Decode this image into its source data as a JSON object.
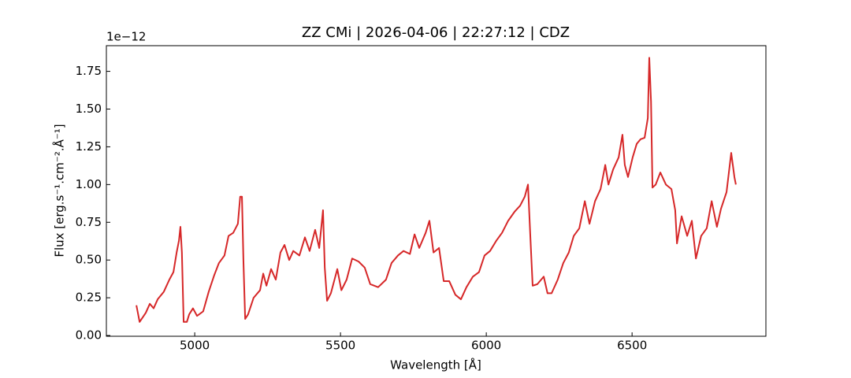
{
  "chart_data": {
    "type": "line",
    "title": "ZZ CMi | 2026-04-06 | 22:27:12 | CDZ",
    "xlabel": "Wavelength [Å]",
    "ylabel": "Flux [erg.s⁻¹.cm⁻².Å⁻¹]",
    "y_offset_text": "1e−12",
    "x": [
      4800,
      4811,
      4832,
      4846,
      4859,
      4873,
      4894,
      4913,
      4927,
      4938,
      4946,
      4951,
      4956,
      4962,
      4973,
      4981,
      4994,
      5008,
      5029,
      5048,
      5067,
      5083,
      5102,
      5116,
      5132,
      5148,
      5156,
      5162,
      5167,
      5173,
      5183,
      5202,
      5224,
      5235,
      5246,
      5262,
      5278,
      5294,
      5308,
      5324,
      5338,
      5359,
      5378,
      5394,
      5413,
      5427,
      5440,
      5446,
      5454,
      5467,
      5489,
      5503,
      5521,
      5540,
      5562,
      5583,
      5602,
      5629,
      5656,
      5675,
      5697,
      5716,
      5738,
      5754,
      5770,
      5792,
      5805,
      5819,
      5838,
      5854,
      5873,
      5894,
      5913,
      5932,
      5954,
      5975,
      5994,
      6013,
      6035,
      6054,
      6075,
      6097,
      6116,
      6132,
      6143,
      6151,
      6159,
      6175,
      6197,
      6210,
      6224,
      6245,
      6264,
      6283,
      6300,
      6319,
      6338,
      6354,
      6373,
      6392,
      6408,
      6419,
      6435,
      6454,
      6467,
      6475,
      6486,
      6502,
      6516,
      6529,
      6543,
      6554,
      6559,
      6565,
      6570,
      6581,
      6597,
      6616,
      6635,
      6648,
      6654,
      6670,
      6689,
      6705,
      6719,
      6737,
      6756,
      6773,
      6791,
      6805,
      6824,
      6840,
      6851,
      6856
    ],
    "series": [
      {
        "name": "ZZ CMi",
        "color": "#d62728",
        "values": [
          0.2,
          0.09,
          0.15,
          0.21,
          0.18,
          0.24,
          0.29,
          0.37,
          0.42,
          0.55,
          0.63,
          0.72,
          0.55,
          0.09,
          0.09,
          0.14,
          0.18,
          0.13,
          0.16,
          0.29,
          0.4,
          0.48,
          0.53,
          0.66,
          0.68,
          0.74,
          0.92,
          0.92,
          0.5,
          0.11,
          0.14,
          0.25,
          0.3,
          0.41,
          0.33,
          0.44,
          0.37,
          0.55,
          0.6,
          0.5,
          0.56,
          0.53,
          0.65,
          0.56,
          0.7,
          0.58,
          0.83,
          0.45,
          0.23,
          0.28,
          0.44,
          0.3,
          0.37,
          0.51,
          0.49,
          0.45,
          0.34,
          0.32,
          0.37,
          0.48,
          0.53,
          0.56,
          0.54,
          0.67,
          0.58,
          0.68,
          0.76,
          0.55,
          0.58,
          0.36,
          0.36,
          0.27,
          0.24,
          0.32,
          0.39,
          0.42,
          0.53,
          0.56,
          0.63,
          0.68,
          0.76,
          0.82,
          0.86,
          0.92,
          1.0,
          0.66,
          0.33,
          0.34,
          0.39,
          0.28,
          0.28,
          0.37,
          0.48,
          0.55,
          0.66,
          0.71,
          0.89,
          0.74,
          0.89,
          0.97,
          1.13,
          1.0,
          1.1,
          1.18,
          1.33,
          1.13,
          1.05,
          1.18,
          1.27,
          1.3,
          1.31,
          1.44,
          1.84,
          1.55,
          0.98,
          1.0,
          1.08,
          1.0,
          0.97,
          0.83,
          0.61,
          0.79,
          0.66,
          0.76,
          0.51,
          0.66,
          0.71,
          0.89,
          0.72,
          0.84,
          0.95,
          1.21,
          1.05,
          1.0
        ]
      }
    ],
    "xlim": [
      4697,
      6959
    ],
    "ylim": [
      -0.005,
      1.92
    ],
    "xticks": [
      5000,
      5500,
      6000,
      6500
    ],
    "yticks": [
      {
        "value": 0,
        "label": "0.00"
      },
      0.25,
      {
        "value": 0.5,
        "label": "0.50"
      },
      0.75,
      {
        "value": 1,
        "label": "1.00"
      },
      1.25,
      {
        "value": 1.5,
        "label": "1.50"
      },
      1.75
    ]
  }
}
